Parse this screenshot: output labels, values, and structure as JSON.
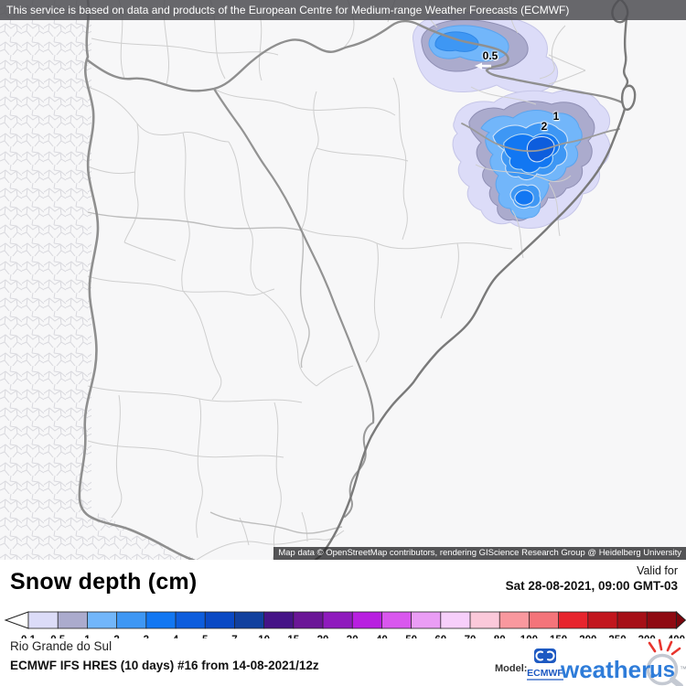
{
  "top_bar": {
    "text": "This service is based on data and products of the European Centre for Medium-range Weather Forecasts (ECMWF)"
  },
  "map": {
    "contour_labels": [
      {
        "value": "0.5"
      },
      {
        "value": "2"
      },
      {
        "value": "1"
      }
    ],
    "attribution": "Map data © OpenStreetMap contributors, rendering GIScience Research Group @ Heidelberg University"
  },
  "legend": {
    "title": "Snow depth (cm)",
    "valid_for": "Valid for",
    "valid_time": "Sat 28-08-2021, 09:00 GMT-03",
    "ticks": [
      "0.1",
      "0.5",
      "1",
      "2",
      "3",
      "4",
      "5",
      "7",
      "10",
      "15",
      "20",
      "30",
      "40",
      "50",
      "60",
      "70",
      "80",
      "100",
      "150",
      "200",
      "250",
      "300",
      "400"
    ],
    "colors": [
      "#dcdcf8",
      "#ababcd",
      "#72b6fa",
      "#3e97f4",
      "#1277f2",
      "#0d5ddd",
      "#0a49c4",
      "#11409e",
      "#451487",
      "#6b1697",
      "#8f1bbd",
      "#b81fe0",
      "#d957ee",
      "#ea9df5",
      "#f7cffb",
      "#fbc9da",
      "#f9989e",
      "#f4747a",
      "#e7242d",
      "#c2161e",
      "#a60f17",
      "#8f0a12"
    ],
    "arrow_left_color": "#ffffff",
    "arrow_right_color": "#7c060d"
  },
  "footer": {
    "region": "Rio Grande do Sul",
    "model_info": "ECMWF IFS HRES (10 days) #16 from 14-08-2021/12z",
    "model_label": "Model:",
    "ecmwf_logo_text": "ECMWF",
    "brand_main": "weather.",
    "brand_suffix": "us",
    "trademark": "™",
    "brand_blue": "#2e7cd9",
    "ecmwf_blue": "#1d59c2",
    "spark_red": "#e8352e"
  }
}
